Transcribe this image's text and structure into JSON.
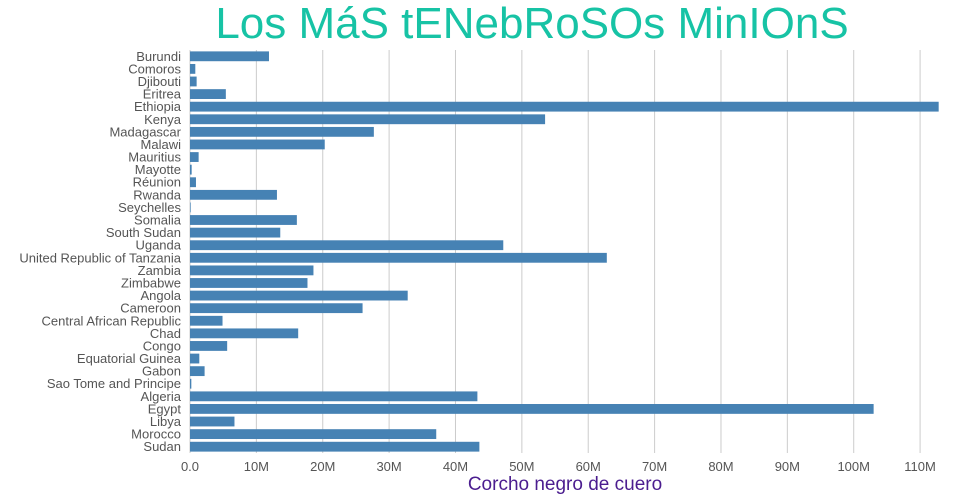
{
  "chart_data": {
    "type": "bar",
    "orientation": "horizontal",
    "title": "Los MáS tENebRoSOs MinIOnS",
    "xlabel": "Corcho negro de cuero",
    "ylabel": "",
    "grid": true,
    "xlim": [
      0,
      113000000
    ],
    "x_ticks": [
      {
        "value": 0,
        "label": "0.0"
      },
      {
        "value": 10000000,
        "label": "10M"
      },
      {
        "value": 20000000,
        "label": "20M"
      },
      {
        "value": 30000000,
        "label": "30M"
      },
      {
        "value": 40000000,
        "label": "40M"
      },
      {
        "value": 50000000,
        "label": "50M"
      },
      {
        "value": 60000000,
        "label": "60M"
      },
      {
        "value": 70000000,
        "label": "70M"
      },
      {
        "value": 80000000,
        "label": "80M"
      },
      {
        "value": 90000000,
        "label": "90M"
      },
      {
        "value": 100000000,
        "label": "100M"
      },
      {
        "value": 110000000,
        "label": "110M"
      }
    ],
    "categories": [
      "Burundi",
      "Comoros",
      "Djibouti",
      "Eritrea",
      "Ethiopia",
      "Kenya",
      "Madagascar",
      "Malawi",
      "Mauritius",
      "Mayotte",
      "Réunion",
      "Rwanda",
      "Seychelles",
      "Somalia",
      "South Sudan",
      "Uganda",
      "United Republic of Tanzania",
      "Zambia",
      "Zimbabwe",
      "Angola",
      "Cameroon",
      "Central African Republic",
      "Chad",
      "Congo",
      "Equatorial Guinea",
      "Gabon",
      "Sao Tome and Principe",
      "Algeria",
      "Egypt",
      "Libya",
      "Morocco",
      "Sudan"
    ],
    "values": [
      11900000,
      800000,
      1000000,
      5400000,
      112800000,
      53500000,
      27700000,
      20300000,
      1300000,
      250000,
      900000,
      13100000,
      100000,
      16100000,
      13600000,
      47200000,
      62800000,
      18600000,
      17700000,
      32800000,
      26000000,
      4900000,
      16300000,
      5600000,
      1400000,
      2200000,
      200000,
      43300000,
      103000000,
      6700000,
      37100000,
      43600000
    ],
    "bar_color": "#4682b4",
    "title_color": "#17c3a5",
    "xlabel_color": "#4b1d8f"
  }
}
